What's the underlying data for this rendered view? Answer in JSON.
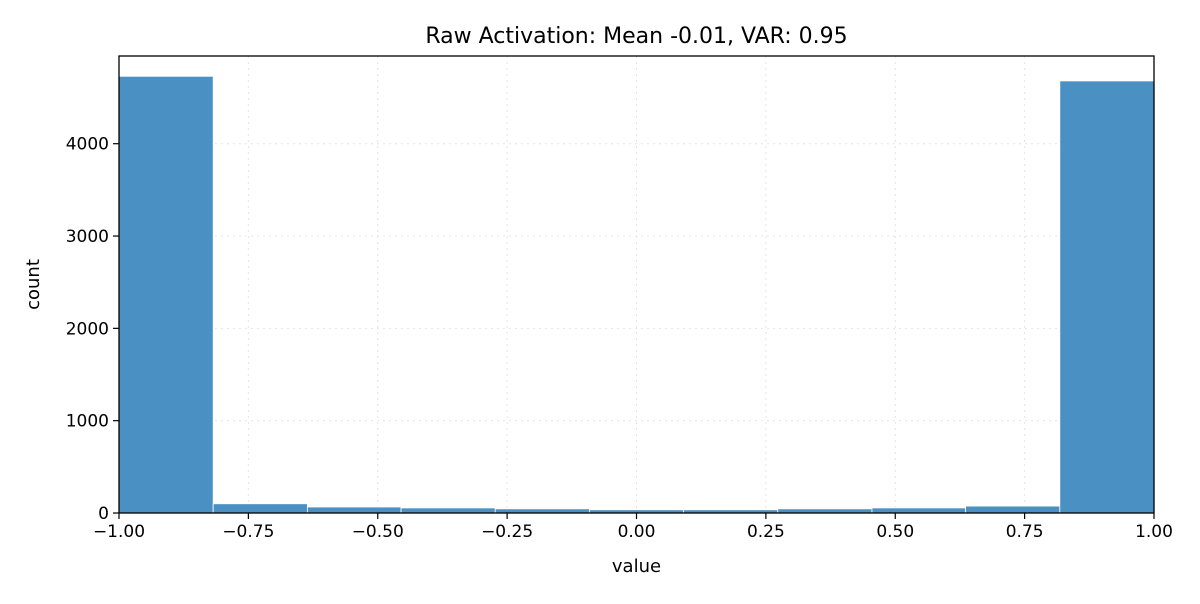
{
  "chart_data": {
    "type": "bar",
    "title": "Raw Activation: Mean -0.01, VAR: 0.95",
    "xlabel": "value",
    "ylabel": "count",
    "xlim": [
      -1.0,
      1.0
    ],
    "ylim": [
      0,
      4950
    ],
    "grid": true,
    "bar_color": "#4a90c2",
    "bar_edge_color": "#ffffff",
    "x_ticks": [
      {
        "value": -1.0,
        "label": "−1.00"
      },
      {
        "value": -0.75,
        "label": "−0.75"
      },
      {
        "value": -0.5,
        "label": "−0.50"
      },
      {
        "value": -0.25,
        "label": "−0.25"
      },
      {
        "value": 0.0,
        "label": "0.00"
      },
      {
        "value": 0.25,
        "label": "0.25"
      },
      {
        "value": 0.5,
        "label": "0.50"
      },
      {
        "value": 0.75,
        "label": "0.75"
      },
      {
        "value": 1.0,
        "label": "1.00"
      }
    ],
    "y_ticks": [
      {
        "value": 0,
        "label": "0"
      },
      {
        "value": 1000,
        "label": "1000"
      },
      {
        "value": 2000,
        "label": "2000"
      },
      {
        "value": 3000,
        "label": "3000"
      },
      {
        "value": 4000,
        "label": "4000"
      }
    ],
    "bins": [
      {
        "start": -1.0,
        "end": -0.818,
        "count": 4730
      },
      {
        "start": -0.818,
        "end": -0.636,
        "count": 100
      },
      {
        "start": -0.636,
        "end": -0.455,
        "count": 65
      },
      {
        "start": -0.455,
        "end": -0.273,
        "count": 55
      },
      {
        "start": -0.273,
        "end": -0.091,
        "count": 45
      },
      {
        "start": -0.091,
        "end": 0.091,
        "count": 35
      },
      {
        "start": 0.091,
        "end": 0.273,
        "count": 35
      },
      {
        "start": 0.273,
        "end": 0.455,
        "count": 45
      },
      {
        "start": 0.455,
        "end": 0.636,
        "count": 55
      },
      {
        "start": 0.636,
        "end": 0.818,
        "count": 75
      },
      {
        "start": 0.818,
        "end": 1.0,
        "count": 4680
      }
    ]
  }
}
